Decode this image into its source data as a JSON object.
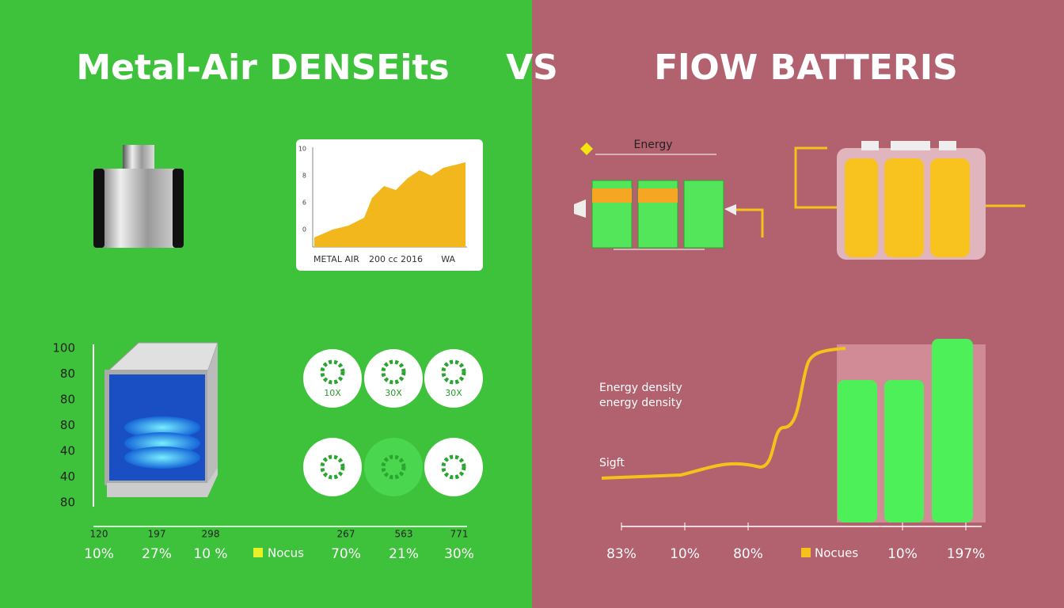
{
  "header": {
    "left_title": "Metal-Air DENSEits",
    "vs": "VS",
    "right_title": "FlOW BATTERIS"
  },
  "left": {
    "mini_chart": {
      "y_labels": [
        "10",
        "8",
        "6",
        "0"
      ],
      "x_labels": [
        "METAL AIR",
        "200  cc 2016",
        "WA"
      ]
    },
    "axis_labels": [
      "100",
      "80",
      "80",
      "80",
      "40",
      "40",
      "80"
    ],
    "circle_labels": [
      "10X",
      "30X",
      "30X"
    ],
    "bottom_numbers": [
      "120",
      "197",
      "298",
      "267",
      "563",
      "771"
    ],
    "bottom_labels": [
      "10%",
      "27%",
      "10 %",
      "70%",
      "21%",
      "30%"
    ],
    "legend": "Nocus"
  },
  "right": {
    "diagram_label": "Energy",
    "density_label": "Energy density",
    "density_sublabel": "energy density",
    "arrow_label": "Sigft",
    "bottom_labels": [
      "83%",
      "10%",
      "80%",
      "10%",
      "197%"
    ],
    "legend": "Nocues"
  }
}
